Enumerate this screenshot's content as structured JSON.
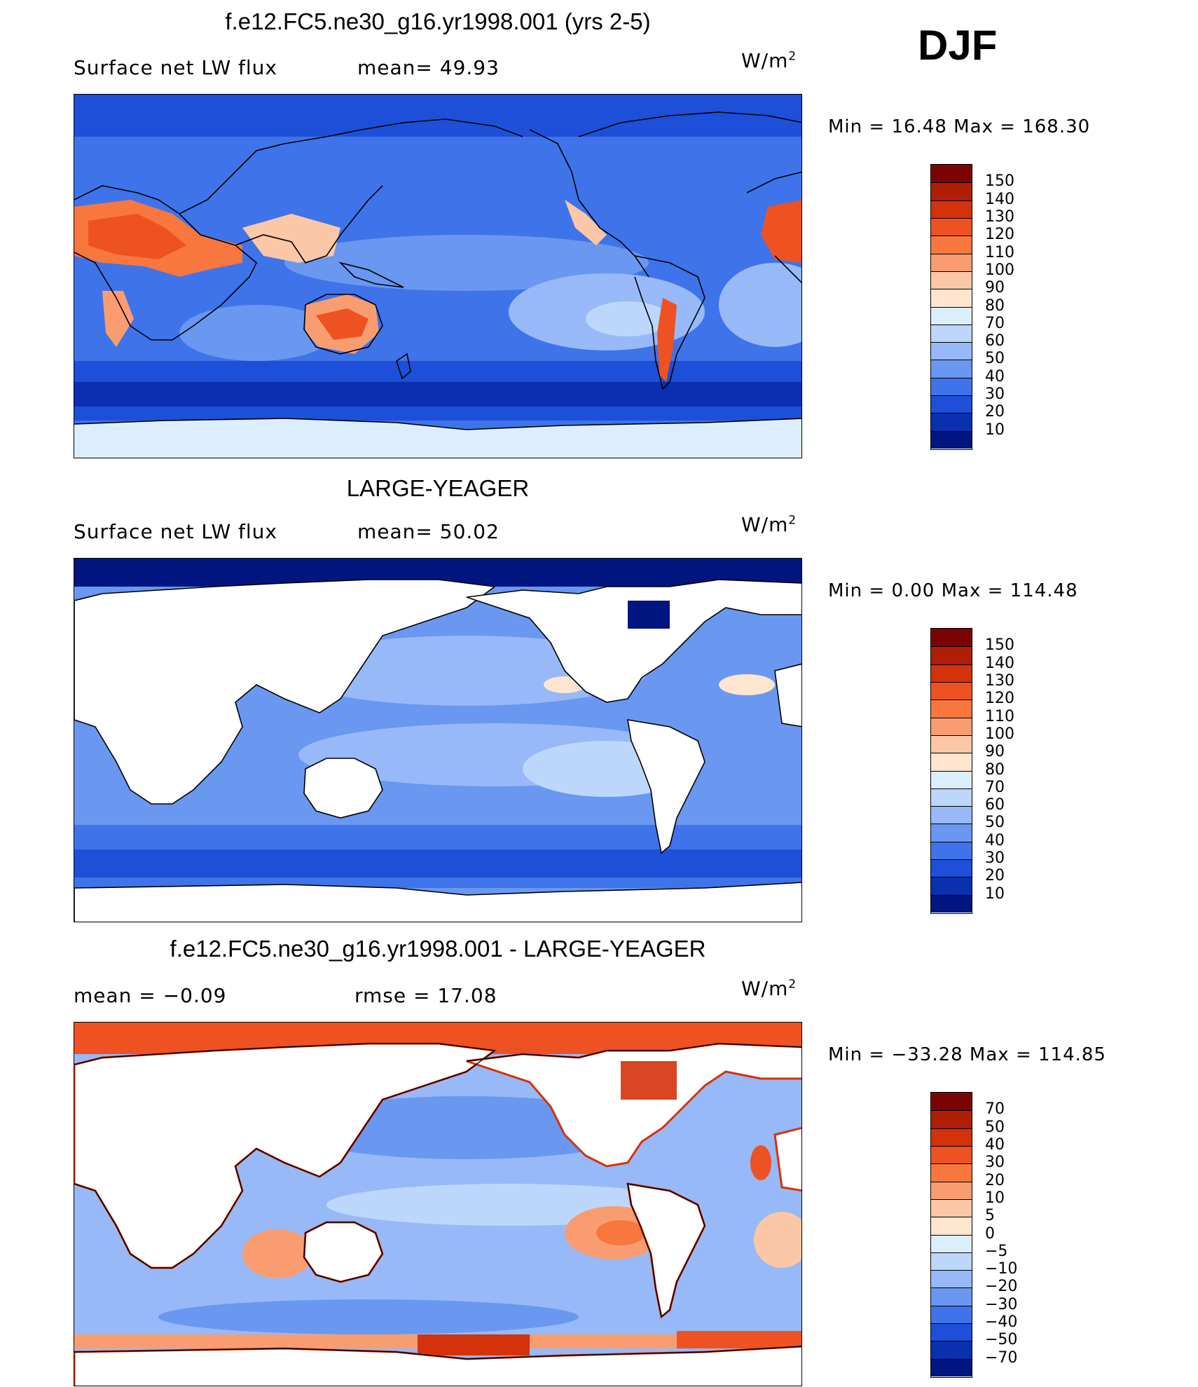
{
  "season": "DJF",
  "units": {
    "main": "W/m",
    "sup": "2"
  },
  "panels": [
    {
      "title": "f.e12.FC5.ne30_g16.yr1998.001 (yrs 2-5)",
      "left_stat": "Surface net LW flux",
      "right_stat": "mean=  49.93",
      "minmax": "Min =   16.48 Max = 168.30",
      "type": "model"
    },
    {
      "title": "LARGE-YEAGER",
      "left_stat": "Surface net LW flux",
      "right_stat": "mean=  50.02",
      "minmax": "Min =    0.00 Max = 114.48",
      "type": "obs"
    },
    {
      "title": "f.e12.FC5.ne30_g16.yr1998.001 - LARGE-YEAGER",
      "left_stat": "mean =   −0.09",
      "right_stat": "rmse =   17.08",
      "minmax": "Min = −33.28 Max = 114.85",
      "type": "diff"
    }
  ],
  "colorbar_abs": {
    "labels": [
      "150",
      "140",
      "130",
      "120",
      "110",
      "100",
      "90",
      "80",
      "70",
      "60",
      "50",
      "40",
      "30",
      "20",
      "10"
    ],
    "colors": [
      "#7a0403",
      "#b11e06",
      "#d4320b",
      "#ef5222",
      "#f7773f",
      "#f99d70",
      "#fbc7a6",
      "#fde5cf",
      "#dceefd",
      "#bcd7fb",
      "#97b9f7",
      "#6a97f0",
      "#3f73ea",
      "#1d4fd8",
      "#0a2fb0",
      "#001580"
    ]
  },
  "colorbar_diff": {
    "labels": [
      "70",
      "50",
      "40",
      "30",
      "20",
      "10",
      "5",
      "0",
      "−5",
      "−10",
      "−20",
      "−30",
      "−40",
      "−50",
      "−70"
    ],
    "colors": [
      "#7a0403",
      "#b11e06",
      "#d4320b",
      "#ef5222",
      "#f7773f",
      "#f99d70",
      "#fbc7a6",
      "#fde5cf",
      "#dceefd",
      "#bcd7fb",
      "#97b9f7",
      "#6a97f0",
      "#3f73ea",
      "#1d4fd8",
      "#0a2fb0",
      "#001580"
    ]
  }
}
